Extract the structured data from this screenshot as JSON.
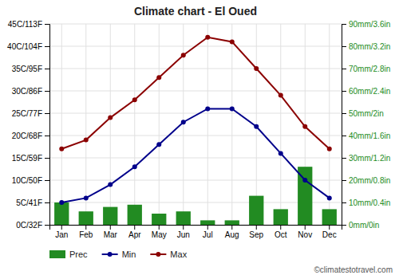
{
  "chart_data": {
    "type": "bar",
    "title": "Climate chart - El Oued",
    "categories": [
      "Jan",
      "Feb",
      "Mar",
      "Apr",
      "May",
      "Jun",
      "Jul",
      "Aug",
      "Sep",
      "Oct",
      "Nov",
      "Dec"
    ],
    "series": [
      {
        "name": "Prec",
        "type": "bar",
        "axis": "y2",
        "color": "#228B22",
        "values": [
          10,
          6,
          8,
          9,
          5,
          6,
          2,
          2,
          13,
          7,
          26,
          7
        ]
      },
      {
        "name": "Min",
        "type": "line",
        "color": "#00008B",
        "marker": "circle",
        "values": [
          5,
          6,
          9,
          13,
          18,
          23,
          26,
          26,
          22,
          16,
          10,
          6
        ]
      },
      {
        "name": "Max",
        "type": "line",
        "color": "#8B0000",
        "marker": "circle",
        "values": [
          17,
          19,
          24,
          28,
          33,
          38,
          42,
          41,
          35,
          29,
          22,
          17
        ]
      }
    ],
    "ylim": [
      0,
      45
    ],
    "yticks": [
      {
        "value": 0,
        "label": "0C/32F"
      },
      {
        "value": 5,
        "label": "5C/41F"
      },
      {
        "value": 10,
        "label": "10C/50F"
      },
      {
        "value": 15,
        "label": "15C/59F"
      },
      {
        "value": 20,
        "label": "20C/68F"
      },
      {
        "value": 25,
        "label": "25C/77F"
      },
      {
        "value": 30,
        "label": "30C/86F"
      },
      {
        "value": 35,
        "label": "35C/95F"
      },
      {
        "value": 40,
        "label": "40C/104F"
      },
      {
        "value": 45,
        "label": "45C/113F"
      }
    ],
    "y2lim": [
      0,
      90
    ],
    "y2ticks": [
      {
        "value": 0,
        "label": "0mm/0in"
      },
      {
        "value": 10,
        "label": "10mm/0.4in"
      },
      {
        "value": 20,
        "label": "20mm/0.8in"
      },
      {
        "value": 30,
        "label": "30mm/1.2in"
      },
      {
        "value": 40,
        "label": "40mm/1.6in"
      },
      {
        "value": 50,
        "label": "50mm/2in"
      },
      {
        "value": 60,
        "label": "60mm/2.4in"
      },
      {
        "value": 70,
        "label": "70mm/2.8in"
      },
      {
        "value": 80,
        "label": "80mm/3.2in"
      },
      {
        "value": 90,
        "label": "90mm/3.6in"
      }
    ],
    "grid": true,
    "legend": "bottom",
    "annotations": [
      "©climatestotravel.com"
    ]
  }
}
